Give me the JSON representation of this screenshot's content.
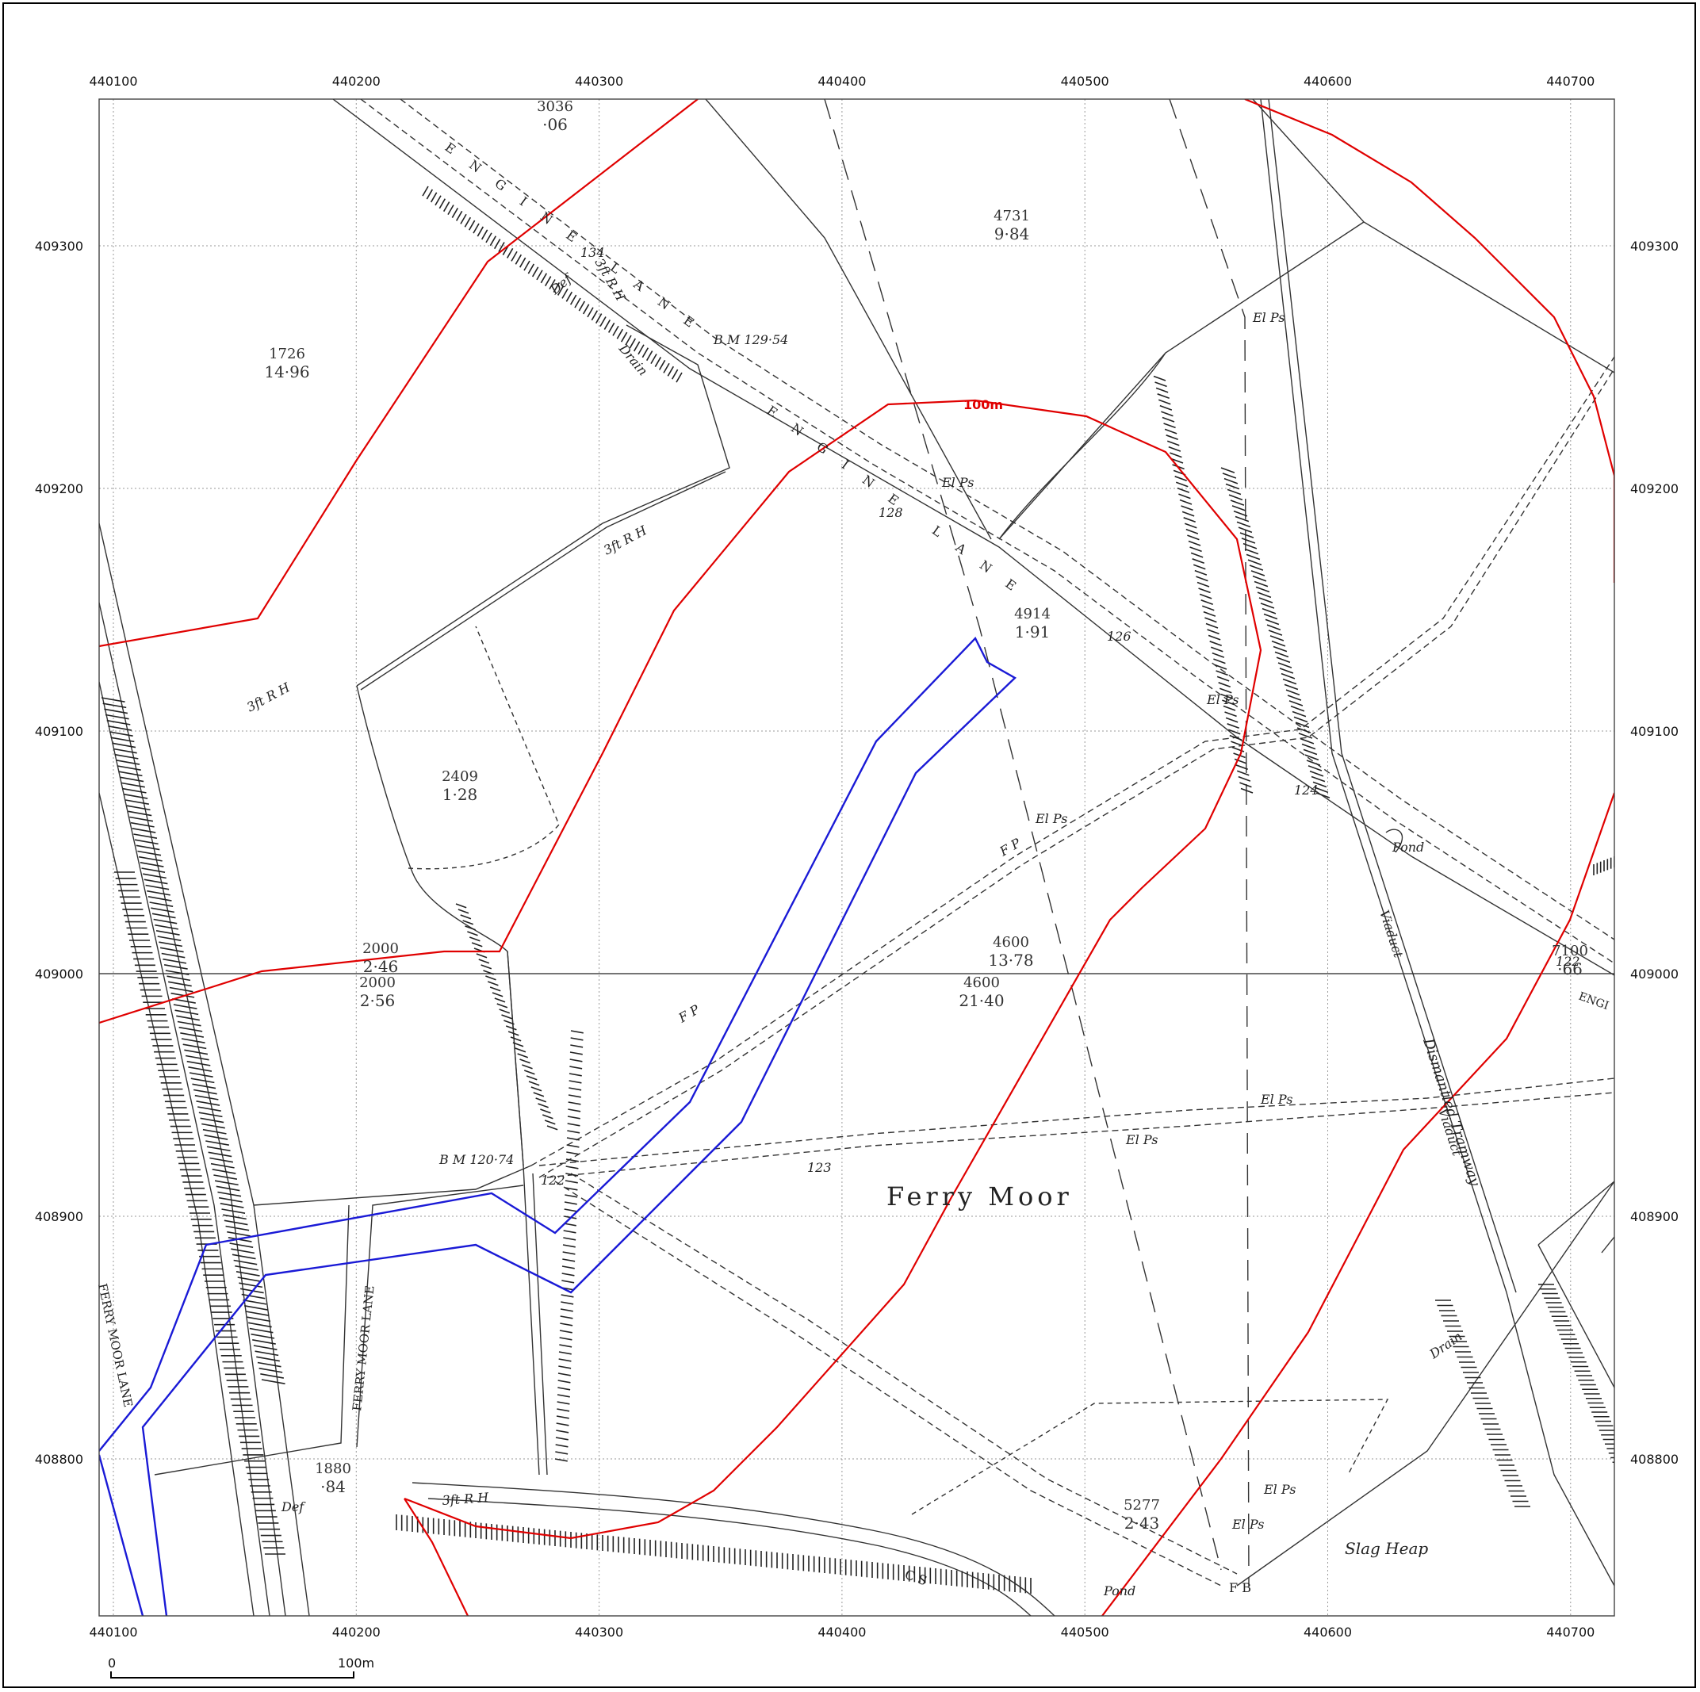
{
  "map": {
    "x_ticks": [
      "440100",
      "440200",
      "440300",
      "440400",
      "440500",
      "440600",
      "440700"
    ],
    "y_ticks": [
      "409300",
      "409200",
      "409100",
      "409000",
      "408900",
      "408800"
    ],
    "scale_bar": {
      "start": "0",
      "end": "100m"
    },
    "ring_label": "100m",
    "colors": {
      "red_line": "#e00000",
      "blue_line": "#1a1ad6",
      "base_ink": "#333333"
    },
    "place_name": "Ferry Moor",
    "parcels": [
      {
        "id": "1726",
        "area": "14·96"
      },
      {
        "id": "4731",
        "area": "9·84"
      },
      {
        "id": "2409",
        "area": "1·28"
      },
      {
        "id": "2000",
        "area": "2·46"
      },
      {
        "id": "2000",
        "area": "2·56"
      },
      {
        "id": "4600",
        "area": "13·78"
      },
      {
        "id": "4600",
        "area": "21·40"
      },
      {
        "id": "4914",
        "area": "1·91"
      },
      {
        "id": "5277",
        "area": "2·43"
      },
      {
        "id": "1880",
        "area": "·84"
      },
      {
        "id": "7100",
        "area": "·66"
      },
      {
        "id": "3036",
        "area": "·06"
      }
    ],
    "labels": {
      "el_ps": "El Ps",
      "fp": "F P",
      "bm_1": "B M 129·54",
      "bm_2": "B M  120·74",
      "rh": "3ft R H",
      "drain": "Drain",
      "def": "Def",
      "pond": "Pond",
      "viaduct": "Viaduct",
      "dismantled_tramway": "Dismantled Tramway",
      "slag_heap": "Slag Heap",
      "ferry_moor_lane": "FERRY MOOR LANE",
      "engine_lane": "ENGINE LANE",
      "cs": "C S",
      "fb": "F B",
      "eng": "ENGI",
      "heights": [
        "134",
        "128",
        "126",
        "124",
        "122",
        "122",
        "123"
      ]
    }
  }
}
